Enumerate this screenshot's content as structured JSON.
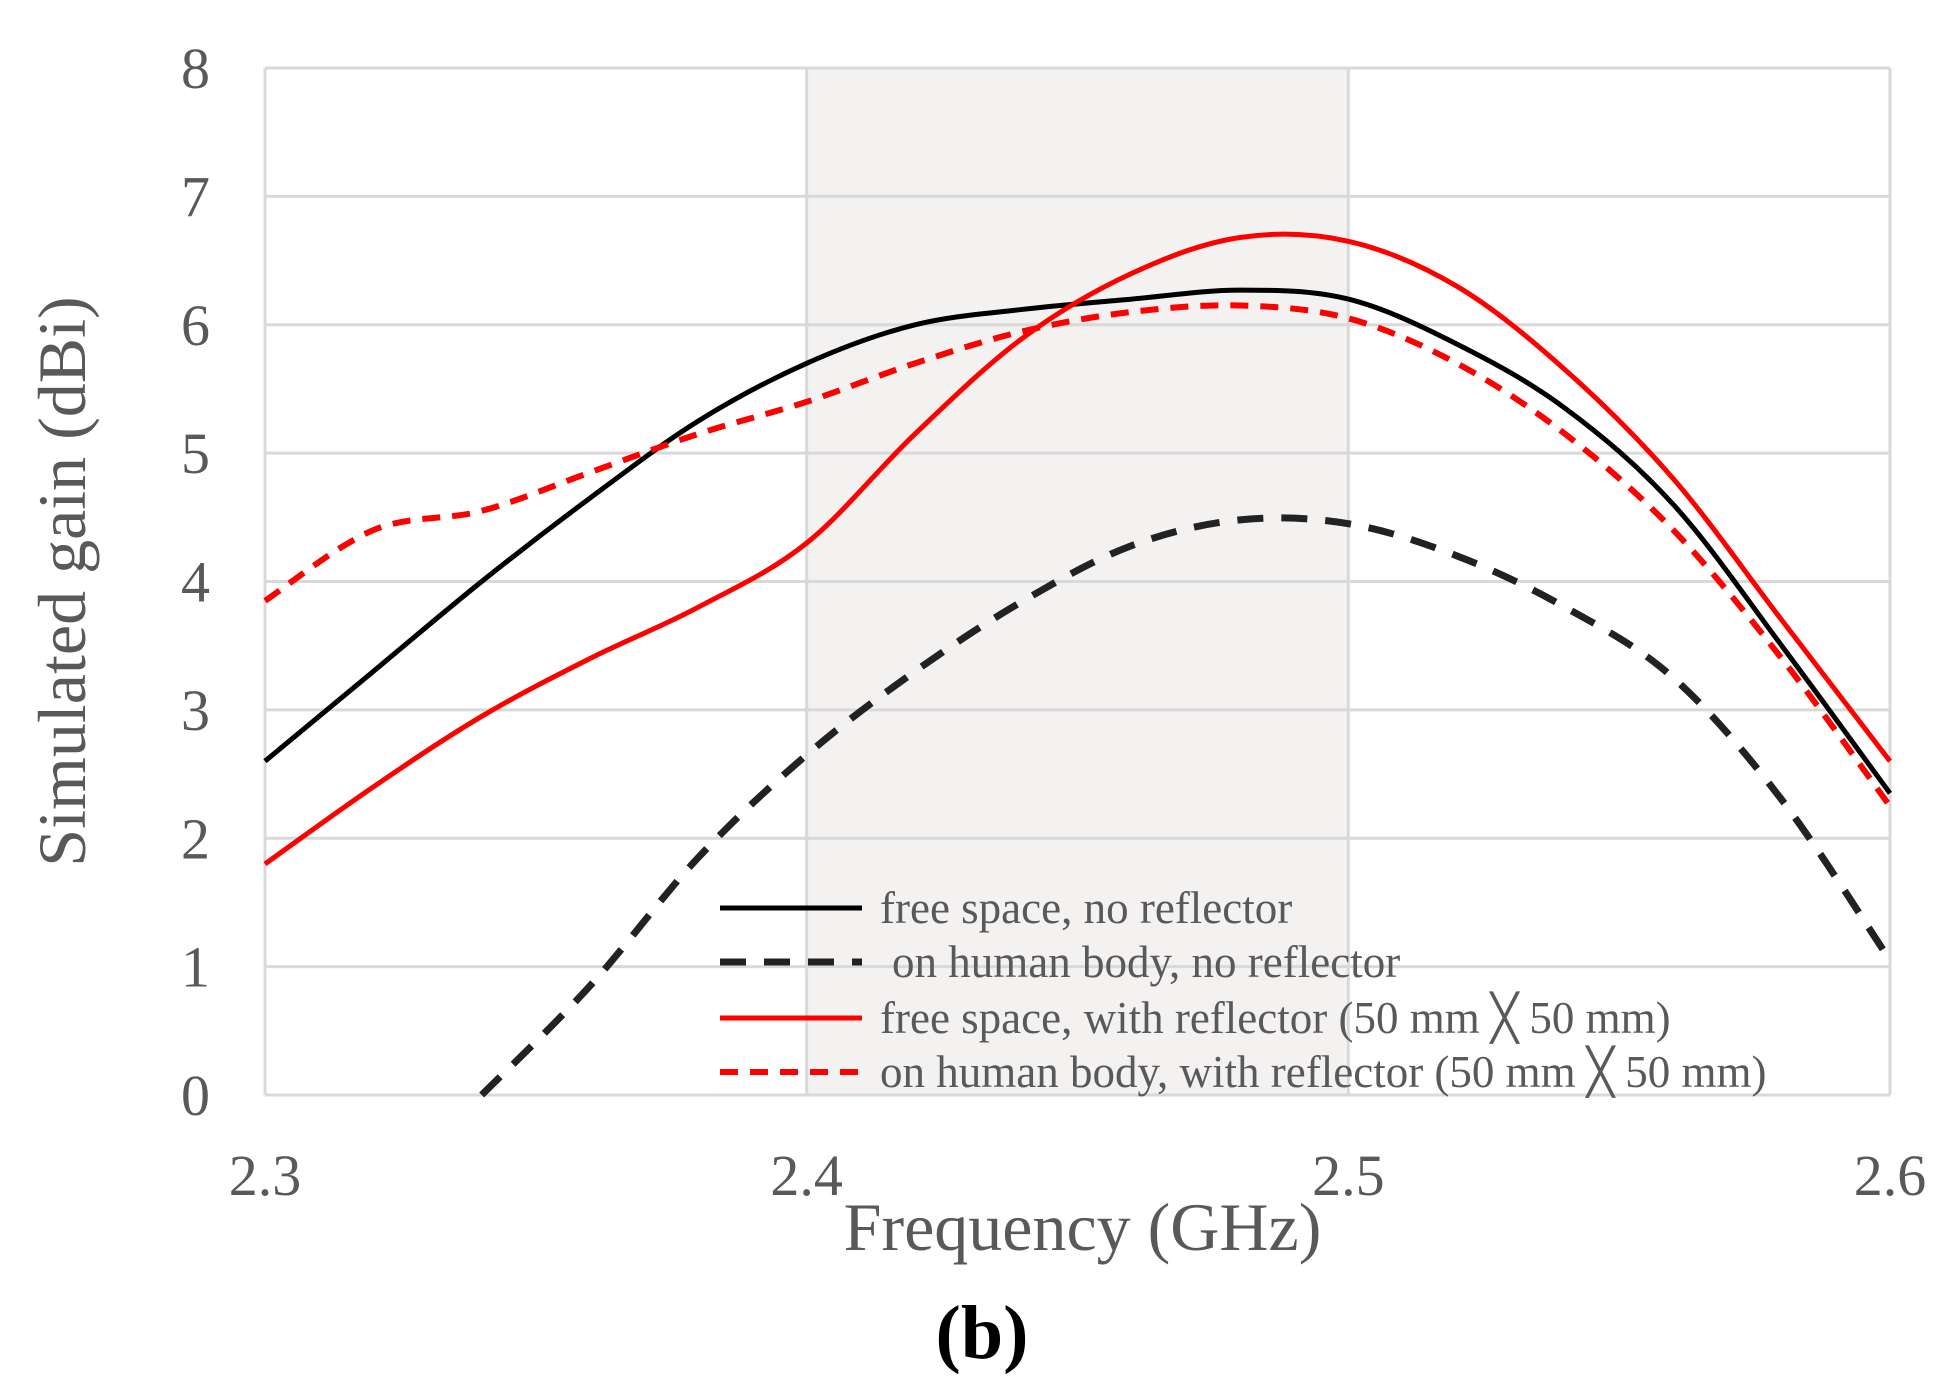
{
  "caption": "(b)",
  "colors": {
    "black_series": "#000000",
    "dark_dashed_series": "#222222",
    "red_series": "#ff0000",
    "grid": "#d9d9d9",
    "band_fill": "#f4f1f1",
    "text": "#595959"
  },
  "chart_data": {
    "type": "line",
    "title": "",
    "xlabel": "Frequency (GHz)",
    "ylabel": "Simulated gain (dBi)",
    "xlim": [
      2.3,
      2.6
    ],
    "ylim": [
      0,
      8
    ],
    "x_ticks": [
      "2.3",
      "2.4",
      "2.5",
      "2.6"
    ],
    "y_ticks": [
      "0",
      "1",
      "2",
      "3",
      "4",
      "5",
      "6",
      "7",
      "8"
    ],
    "grid": true,
    "shaded_band": [
      2.4,
      2.5
    ],
    "legend_position": "bottom-center",
    "series": [
      {
        "name": "free space, no reflector",
        "color": "#000000",
        "dash": "solid",
        "x": [
          2.3,
          2.32,
          2.34,
          2.36,
          2.38,
          2.4,
          2.42,
          2.44,
          2.46,
          2.48,
          2.5,
          2.52,
          2.54,
          2.56,
          2.58,
          2.6
        ],
        "y": [
          2.6,
          3.3,
          4.0,
          4.65,
          5.25,
          5.7,
          6.0,
          6.12,
          6.2,
          6.27,
          6.2,
          5.85,
          5.35,
          4.6,
          3.5,
          2.35
        ]
      },
      {
        "name": "on human body, no reflector",
        "color": "#222222",
        "dash": "dashed",
        "x": [
          2.34,
          2.36,
          2.38,
          2.4,
          2.42,
          2.44,
          2.46,
          2.48,
          2.5,
          2.52,
          2.54,
          2.56,
          2.58,
          2.6
        ],
        "y": [
          0.0,
          0.85,
          1.85,
          2.65,
          3.3,
          3.85,
          4.28,
          4.48,
          4.45,
          4.2,
          3.8,
          3.25,
          2.3,
          1.05
        ]
      },
      {
        "name": "free space, with reflector (50 mm ╳ 50 mm)",
        "color": "#ff0000",
        "dash": "solid",
        "x": [
          2.3,
          2.32,
          2.34,
          2.36,
          2.38,
          2.4,
          2.42,
          2.44,
          2.46,
          2.48,
          2.5,
          2.52,
          2.54,
          2.56,
          2.58,
          2.6
        ],
        "y": [
          1.8,
          2.4,
          2.95,
          3.4,
          3.8,
          4.3,
          5.15,
          5.9,
          6.4,
          6.68,
          6.65,
          6.3,
          5.65,
          4.8,
          3.7,
          2.6
        ]
      },
      {
        "name": "on human body, with reflector (50 mm ╳ 50 mm)",
        "color": "#ff0000",
        "dash": "dashed",
        "x": [
          2.3,
          2.32,
          2.34,
          2.36,
          2.38,
          2.4,
          2.42,
          2.44,
          2.46,
          2.48,
          2.5,
          2.52,
          2.54,
          2.56,
          2.58,
          2.6
        ],
        "y": [
          3.85,
          4.4,
          4.55,
          4.85,
          5.15,
          5.4,
          5.7,
          5.95,
          6.1,
          6.15,
          6.05,
          5.7,
          5.15,
          4.4,
          3.4,
          2.25
        ]
      }
    ]
  }
}
